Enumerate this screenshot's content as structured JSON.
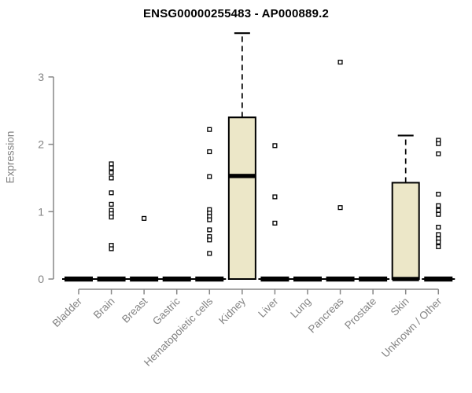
{
  "colors": {
    "box_fill": "#ece7c8",
    "axis": "#878787",
    "tick_text": "#838383",
    "title_text": "#000000",
    "data_ink": "#000000",
    "background": "#ffffff"
  },
  "chart_data": {
    "type": "boxplot",
    "title": "ENSG00000255483 - AP000889.2",
    "ylabel": "Expression",
    "xlabel": "",
    "yticks": [
      0,
      1,
      2,
      3
    ],
    "ylim": [
      0,
      3.8
    ],
    "grid": false,
    "legend": null,
    "categories": [
      "Bladder",
      "Brain",
      "Breast",
      "Gastric",
      "Hematopoietic cells",
      "Kidney",
      "Liver",
      "Lung",
      "Pancreas",
      "Prostate",
      "Skin",
      "Unknown / Other"
    ],
    "boxes": [
      {
        "category": "Bladder",
        "q1": 0,
        "median": 0,
        "q3": 0,
        "whisker_low": 0,
        "whisker_high": 0,
        "outliers": []
      },
      {
        "category": "Brain",
        "q1": 0,
        "median": 0,
        "q3": 0,
        "whisker_low": 0,
        "whisker_high": 0,
        "outliers": [
          1.71,
          1.65,
          1.58,
          1.5,
          1.28,
          1.11,
          1.02,
          0.97,
          0.92,
          0.5,
          0.45
        ]
      },
      {
        "category": "Breast",
        "q1": 0,
        "median": 0,
        "q3": 0,
        "whisker_low": 0,
        "whisker_high": 0,
        "outliers": [
          0.9
        ]
      },
      {
        "category": "Gastric",
        "q1": 0,
        "median": 0,
        "q3": 0,
        "whisker_low": 0,
        "whisker_high": 0,
        "outliers": []
      },
      {
        "category": "Hematopoietic cells",
        "q1": 0,
        "median": 0,
        "q3": 0,
        "whisker_low": 0,
        "whisker_high": 0,
        "outliers": [
          2.22,
          1.89,
          1.52,
          1.03,
          0.98,
          0.93,
          0.88,
          0.73,
          0.63,
          0.58,
          0.38
        ]
      },
      {
        "category": "Kidney",
        "q1": 0,
        "median": 1.53,
        "q3": 2.4,
        "whisker_low": 0,
        "whisker_high": 3.65,
        "outliers": []
      },
      {
        "category": "Liver",
        "q1": 0,
        "median": 0,
        "q3": 0,
        "whisker_low": 0,
        "whisker_high": 0,
        "outliers": [
          1.98,
          1.22,
          0.83
        ]
      },
      {
        "category": "Lung",
        "q1": 0,
        "median": 0,
        "q3": 0,
        "whisker_low": 0,
        "whisker_high": 0,
        "outliers": []
      },
      {
        "category": "Pancreas",
        "q1": 0,
        "median": 0,
        "q3": 0,
        "whisker_low": 0,
        "whisker_high": 0,
        "outliers": [
          3.22,
          1.06
        ]
      },
      {
        "category": "Prostate",
        "q1": 0,
        "median": 0,
        "q3": 0,
        "whisker_low": 0,
        "whisker_high": 0,
        "outliers": []
      },
      {
        "category": "Skin",
        "q1": 0,
        "median": 0,
        "q3": 1.43,
        "whisker_low": 0,
        "whisker_high": 2.13,
        "outliers": []
      },
      {
        "category": "Unknown / Other",
        "q1": 0,
        "median": 0,
        "q3": 0,
        "whisker_low": 0,
        "whisker_high": 0,
        "outliers": [
          2.06,
          2.01,
          1.86,
          1.26,
          1.09,
          1.02,
          0.96,
          0.77,
          0.66,
          0.6,
          0.55,
          0.48
        ]
      }
    ]
  }
}
